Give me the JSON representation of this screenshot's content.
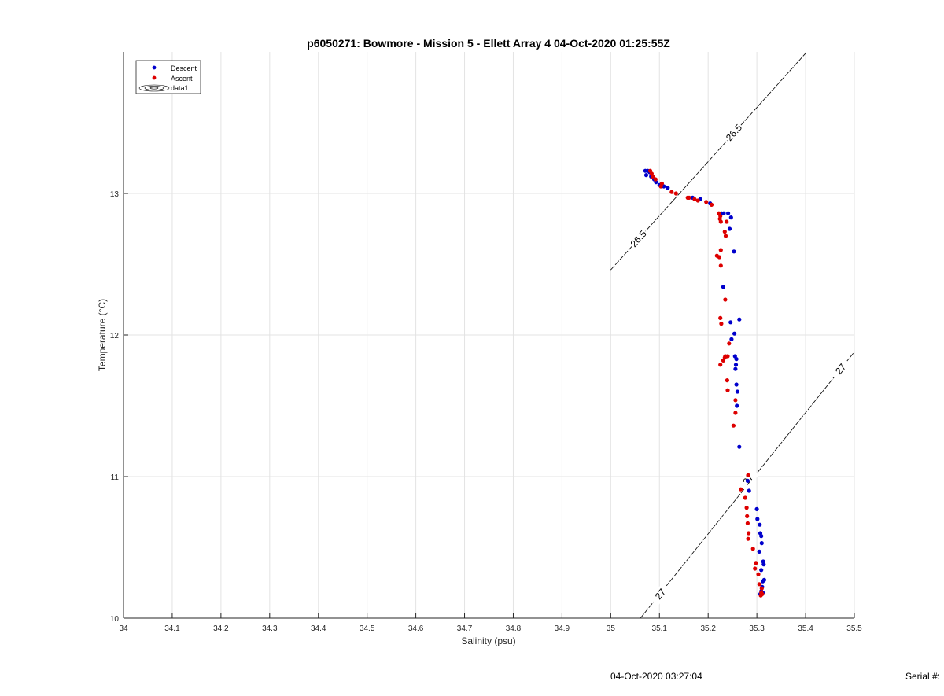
{
  "chart_data": {
    "type": "scatter",
    "title": "p6050271: Bowmore - Mission 5 - Ellett Array 4 04-Oct-2020 01:25:55Z",
    "xlabel": "Salinity (psu)",
    "ylabel": "Temperature (°C)",
    "xlim": [
      34,
      35.5
    ],
    "ylim": [
      10,
      14
    ],
    "x_ticks": [
      "34",
      "34.1",
      "34.2",
      "34.3",
      "34.4",
      "34.5",
      "34.6",
      "34.7",
      "34.8",
      "34.9",
      "35",
      "35.1",
      "35.2",
      "35.3",
      "35.4",
      "35.5"
    ],
    "y_ticks": [
      "10",
      "11",
      "12",
      "13"
    ],
    "grid": true,
    "legend_position": "top-left",
    "legend": [
      {
        "label": "Descent",
        "marker": "dot",
        "color": "#0000cc"
      },
      {
        "label": "Ascent",
        "marker": "dot",
        "color": "#dd0000"
      },
      {
        "label": "data1",
        "marker": "contour",
        "color": "#000000"
      }
    ],
    "series": [
      {
        "name": "Descent",
        "color": "#0000cc",
        "points": [
          [
            35.071,
            13.16
          ],
          [
            35.076,
            13.16
          ],
          [
            35.073,
            13.13
          ],
          [
            35.08,
            13.15
          ],
          [
            35.083,
            13.12
          ],
          [
            35.089,
            13.1
          ],
          [
            35.093,
            13.08
          ],
          [
            35.1,
            13.06
          ],
          [
            35.109,
            13.05
          ],
          [
            35.117,
            13.04
          ],
          [
            35.168,
            12.97
          ],
          [
            35.184,
            12.96
          ],
          [
            35.204,
            12.93
          ],
          [
            35.227,
            12.86
          ],
          [
            35.232,
            12.86
          ],
          [
            35.241,
            12.86
          ],
          [
            35.247,
            12.83
          ],
          [
            35.244,
            12.75
          ],
          [
            35.253,
            12.59
          ],
          [
            35.231,
            12.34
          ],
          [
            35.264,
            12.11
          ],
          [
            35.246,
            12.09
          ],
          [
            35.254,
            12.01
          ],
          [
            35.248,
            11.97
          ],
          [
            35.255,
            11.85
          ],
          [
            35.258,
            11.83
          ],
          [
            35.257,
            11.79
          ],
          [
            35.256,
            11.76
          ],
          [
            35.258,
            11.65
          ],
          [
            35.26,
            11.6
          ],
          [
            35.259,
            11.5
          ],
          [
            35.264,
            11.21
          ],
          [
            35.281,
            10.97
          ],
          [
            35.284,
            10.9
          ],
          [
            35.3,
            10.77
          ],
          [
            35.301,
            10.7
          ],
          [
            35.306,
            10.66
          ],
          [
            35.307,
            10.6
          ],
          [
            35.309,
            10.58
          ],
          [
            35.31,
            10.53
          ],
          [
            35.305,
            10.47
          ],
          [
            35.313,
            10.4
          ],
          [
            35.314,
            10.38
          ],
          [
            35.309,
            10.34
          ],
          [
            35.315,
            10.27
          ],
          [
            35.312,
            10.26
          ],
          [
            35.311,
            10.22
          ],
          [
            35.309,
            10.19
          ],
          [
            35.312,
            10.18
          ],
          [
            35.307,
            10.17
          ]
        ]
      },
      {
        "name": "Ascent",
        "color": "#dd0000",
        "points": [
          [
            35.081,
            13.16
          ],
          [
            35.084,
            13.14
          ],
          [
            35.086,
            13.12
          ],
          [
            35.092,
            13.1
          ],
          [
            35.105,
            13.07
          ],
          [
            35.103,
            13.05
          ],
          [
            35.125,
            13.01
          ],
          [
            35.134,
            13.0
          ],
          [
            35.158,
            12.97
          ],
          [
            35.161,
            12.97
          ],
          [
            35.172,
            12.96
          ],
          [
            35.179,
            12.95
          ],
          [
            35.196,
            12.94
          ],
          [
            35.207,
            12.92
          ],
          [
            35.222,
            12.86
          ],
          [
            35.225,
            12.84
          ],
          [
            35.224,
            12.82
          ],
          [
            35.226,
            12.8
          ],
          [
            35.238,
            12.8
          ],
          [
            35.234,
            12.73
          ],
          [
            35.236,
            12.7
          ],
          [
            35.226,
            12.6
          ],
          [
            35.223,
            12.55
          ],
          [
            35.218,
            12.56
          ],
          [
            35.226,
            12.49
          ],
          [
            35.235,
            12.25
          ],
          [
            35.225,
            12.12
          ],
          [
            35.227,
            12.08
          ],
          [
            35.243,
            11.94
          ],
          [
            35.24,
            11.85
          ],
          [
            35.235,
            11.85
          ],
          [
            35.234,
            11.84
          ],
          [
            35.231,
            11.82
          ],
          [
            35.225,
            11.79
          ],
          [
            35.239,
            11.68
          ],
          [
            35.24,
            11.61
          ],
          [
            35.256,
            11.54
          ],
          [
            35.256,
            11.45
          ],
          [
            35.252,
            11.36
          ],
          [
            35.282,
            11.01
          ],
          [
            35.267,
            10.91
          ],
          [
            35.276,
            10.85
          ],
          [
            35.279,
            10.78
          ],
          [
            35.28,
            10.72
          ],
          [
            35.281,
            10.67
          ],
          [
            35.283,
            10.6
          ],
          [
            35.282,
            10.56
          ],
          [
            35.292,
            10.49
          ],
          [
            35.298,
            10.39
          ],
          [
            35.296,
            10.35
          ],
          [
            35.303,
            10.31
          ],
          [
            35.305,
            10.24
          ],
          [
            35.31,
            10.21
          ],
          [
            35.309,
            10.18
          ],
          [
            35.308,
            10.16
          ],
          [
            35.311,
            10.17
          ]
        ]
      }
    ],
    "contours": [
      {
        "level_label": "26.5",
        "line": [
          [
            35.0,
            12.46
          ],
          [
            35.4,
            13.99
          ]
        ],
        "labels": [
          [
            35.057,
            12.68
          ],
          [
            35.253,
            13.43
          ]
        ]
      },
      {
        "level_label": "27",
        "line": [
          [
            35.061,
            10.0
          ],
          [
            35.5,
            11.88
          ]
        ],
        "labels": [
          [
            35.102,
            10.17
          ],
          [
            35.282,
            10.98
          ],
          [
            35.472,
            11.76
          ]
        ]
      }
    ]
  },
  "footer": {
    "timestamp": "04-Oct-2020 03:27:04",
    "serial": "Serial #:"
  }
}
